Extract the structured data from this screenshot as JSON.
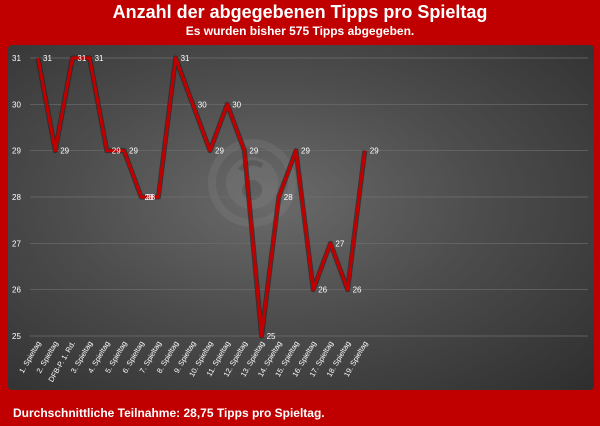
{
  "title": "Anzahl der abgegebenen Tipps pro Spieltag",
  "subtitle": "Es wurden bisher 575 Tipps abgegeben.",
  "footer": "Durchschnittliche Teilnahme: 28,75 Tipps pro Spieltag.",
  "colors": {
    "background": "#c00000",
    "line": "#c00000",
    "text": "#ffffff"
  },
  "watermark_icon": "club-logo-watermark-icon",
  "chart_data": {
    "type": "line",
    "title": "Anzahl der abgegebenen Tipps pro Spieltag",
    "xlabel": "",
    "ylabel": "",
    "ylim": [
      25,
      31
    ],
    "yticks": [
      25,
      26,
      27,
      28,
      29,
      30,
      31
    ],
    "grid": true,
    "categories": [
      "1. Spieltag",
      "2. Spieltag",
      "DFB-P. 1. Rd.",
      "3. Spieltag",
      "4. Spieltag",
      "5. Spieltag",
      "6. Spieltag",
      "7. Spieltag",
      "8. Spieltag",
      "9. Spieltag",
      "10. Spieltag",
      "11. Spieltag",
      "12. Spieltag",
      "13. Spieltag",
      "14. Spieltag",
      "15. Spieltag",
      "16. Spieltag",
      "17. Spieltag",
      "18. Spieltag",
      "19. Spieltag"
    ],
    "values": [
      31,
      29,
      31,
      31,
      29,
      29,
      28,
      28,
      31,
      30,
      29,
      30,
      29,
      25,
      28,
      29,
      26,
      27,
      26,
      29
    ]
  }
}
